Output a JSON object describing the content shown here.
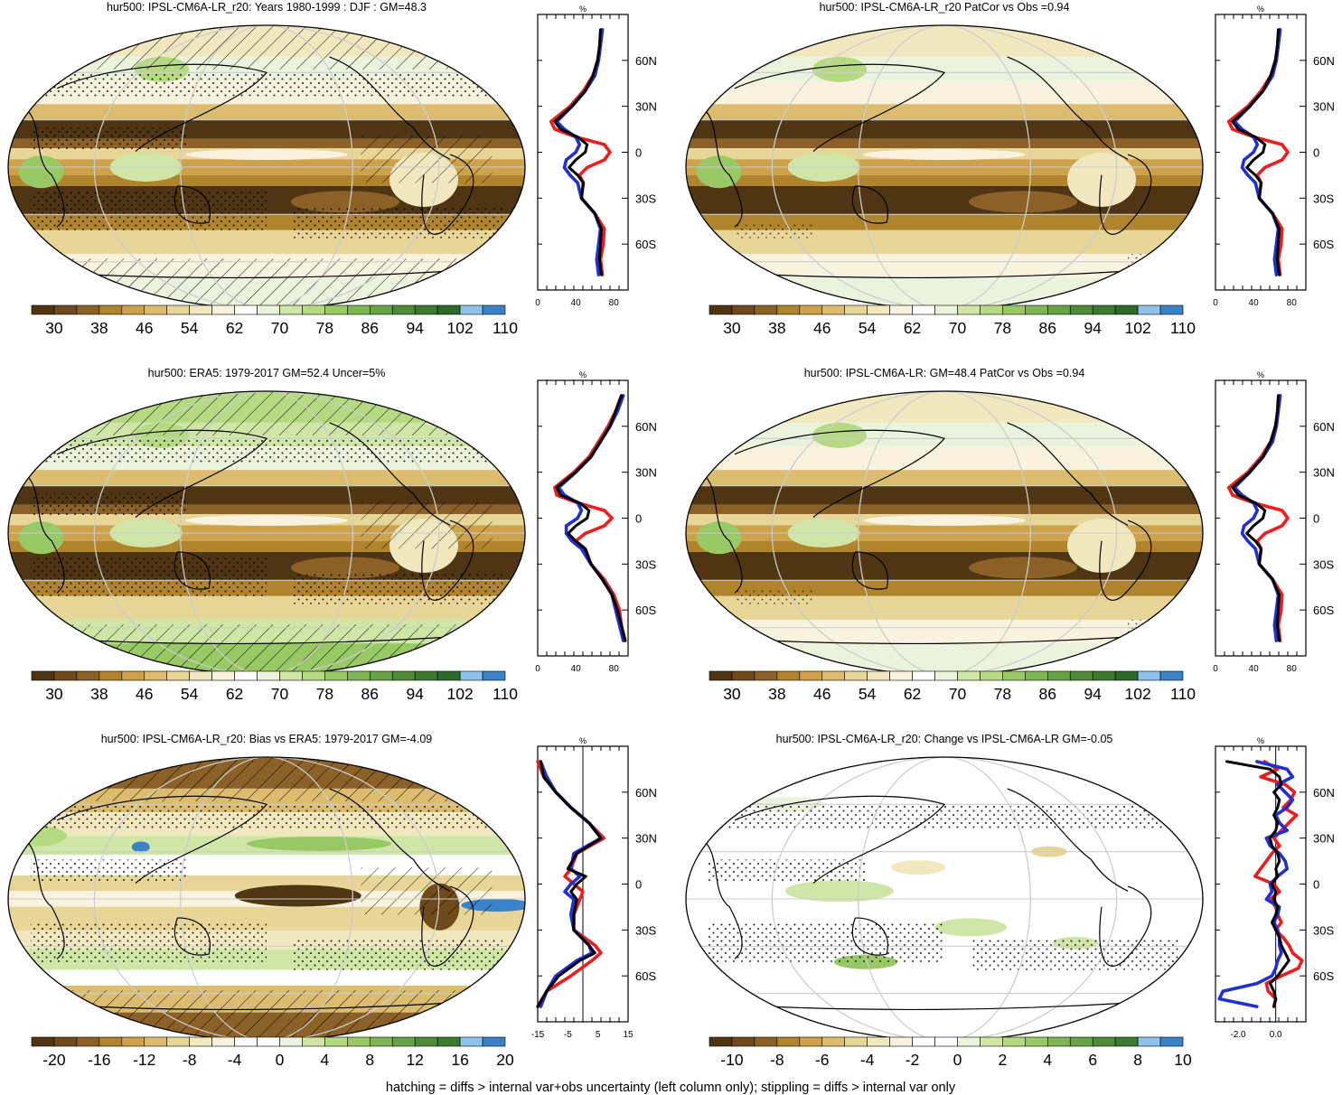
{
  "footer": "hatching = diffs > internal var+obs uncertainty (left column only); stippling = diffs > internal var only",
  "lat_ticks": [
    "60N",
    "30N",
    "0",
    "30S",
    "60S"
  ],
  "profile_unit": "%",
  "colorbars": {
    "absolute": {
      "labels": [
        "30",
        "38",
        "46",
        "54",
        "62",
        "70",
        "78",
        "86",
        "94",
        "102",
        "110"
      ],
      "colors": [
        "#4f3514",
        "#6f4a1c",
        "#8c6128",
        "#b0842c",
        "#cda24a",
        "#dcbd70",
        "#e8d598",
        "#f2e8c0",
        "#f8f2de",
        "#ffffff",
        "#ecf3dc",
        "#cfe6a6",
        "#b6da82",
        "#98c964",
        "#7fb552",
        "#67a244",
        "#4f8a37",
        "#3d7a30",
        "#2c6a2a",
        "#8ec2ea",
        "#3b83c8"
      ]
    },
    "bias": {
      "labels": [
        "-20",
        "-16",
        "-12",
        "-8",
        "-4",
        "0",
        "4",
        "8",
        "12",
        "16",
        "20"
      ],
      "colors": [
        "#4f3514",
        "#6f4a1c",
        "#8c6128",
        "#b0842c",
        "#cda24a",
        "#dcbd70",
        "#e8d598",
        "#f2e8c0",
        "#f8f2de",
        "#ffffff",
        "#ffffff",
        "#ecf3dc",
        "#cfe6a6",
        "#b6da82",
        "#98c964",
        "#7fb552",
        "#67a244",
        "#4f8a37",
        "#3d7a30",
        "#8ec2ea",
        "#3b83c8"
      ]
    },
    "change": {
      "labels": [
        "-10",
        "-8",
        "-6",
        "-4",
        "-2",
        "0",
        "2",
        "4",
        "6",
        "8",
        "10"
      ],
      "colors": [
        "#4f3514",
        "#6f4a1c",
        "#8c6128",
        "#b0842c",
        "#cda24a",
        "#dcbd70",
        "#e8d598",
        "#f2e8c0",
        "#f8f2de",
        "#ffffff",
        "#ffffff",
        "#ecf3dc",
        "#cfe6a6",
        "#b6da82",
        "#98c964",
        "#7fb552",
        "#67a244",
        "#4f8a37",
        "#3d7a30",
        "#8ec2ea",
        "#3b83c8"
      ]
    }
  },
  "profile_colors": {
    "black": "#000000",
    "red": "#ee1c1c",
    "blue": "#1f2fd6"
  },
  "chart_data": [
    {
      "type": "heatmap",
      "title": "hur500: IPSL-CM6A-LR_r20: Years 1980-1999 : DJF : GM=48.3",
      "colorbar": "absolute",
      "pattern": "hatching+stippling",
      "profile": {
        "xticks": [
          "0",
          "40",
          "80"
        ],
        "xlim": [
          0,
          95
        ],
        "zero_line": false,
        "lat": [
          80,
          70,
          60,
          50,
          40,
          30,
          20,
          15,
          10,
          5,
          0,
          -5,
          -10,
          -15,
          -20,
          -30,
          -40,
          -50,
          -60,
          -70,
          -80
        ],
        "series": [
          {
            "name": "black",
            "values": [
              66,
              65,
              63,
              58,
              50,
              36,
              18,
              24,
              42,
              52,
              50,
              40,
              33,
              42,
              48,
              46,
              60,
              67,
              66,
              65,
              67
            ]
          },
          {
            "name": "red",
            "values": [
              67,
              66,
              63,
              58,
              48,
              34,
              14,
              18,
              40,
              70,
              76,
              70,
              52,
              44,
              48,
              46,
              60,
              70,
              69,
              66,
              68
            ]
          },
          {
            "name": "blue",
            "values": [
              68,
              66,
              64,
              60,
              50,
              36,
              20,
              28,
              40,
              44,
              40,
              30,
              28,
              34,
              42,
              46,
              60,
              66,
              64,
              62,
              64
            ]
          }
        ]
      }
    },
    {
      "type": "heatmap",
      "title": "hur500: IPSL-CM6A-LR_r20 PatCor vs Obs =0.94",
      "colorbar": "absolute",
      "pattern": "stippling",
      "profile": {
        "xticks": [
          "0",
          "40",
          "80"
        ],
        "xlim": [
          0,
          95
        ],
        "zero_line": false,
        "lat": [
          80,
          70,
          60,
          50,
          40,
          30,
          20,
          15,
          10,
          5,
          0,
          -5,
          -10,
          -15,
          -20,
          -30,
          -40,
          -50,
          -60,
          -70,
          -80
        ],
        "series": [
          {
            "name": "black",
            "values": [
              66,
              65,
              63,
              58,
              50,
              36,
              18,
              24,
              42,
              52,
              50,
              40,
              33,
              42,
              48,
              46,
              60,
              67,
              66,
              65,
              67
            ]
          },
          {
            "name": "red",
            "values": [
              67,
              66,
              63,
              58,
              48,
              34,
              14,
              18,
              40,
              70,
              76,
              70,
              52,
              44,
              48,
              46,
              60,
              70,
              69,
              66,
              68
            ]
          },
          {
            "name": "blue",
            "values": [
              68,
              66,
              64,
              60,
              50,
              36,
              20,
              28,
              40,
              44,
              40,
              30,
              28,
              34,
              42,
              46,
              60,
              66,
              64,
              62,
              64
            ]
          }
        ]
      }
    },
    {
      "type": "heatmap",
      "title": "hur500: ERA5: 1979-2017 GM=52.4 Uncer=5%",
      "colorbar": "absolute",
      "pattern": "hatching+stippling",
      "profile": {
        "xticks": [
          "0",
          "40",
          "80"
        ],
        "xlim": [
          0,
          95
        ],
        "zero_line": false,
        "lat": [
          80,
          70,
          60,
          50,
          40,
          30,
          20,
          15,
          10,
          5,
          0,
          -5,
          -10,
          -15,
          -20,
          -30,
          -40,
          -50,
          -60,
          -70,
          -80
        ],
        "series": [
          {
            "name": "black",
            "values": [
              88,
              82,
              76,
              66,
              56,
              40,
              20,
              24,
              44,
              54,
              52,
              40,
              32,
              40,
              50,
              56,
              68,
              78,
              84,
              88,
              92
            ]
          },
          {
            "name": "red",
            "values": [
              88,
              82,
              74,
              64,
              54,
              38,
              18,
              20,
              42,
              70,
              78,
              70,
              50,
              40,
              50,
              56,
              70,
              80,
              86,
              88,
              92
            ]
          },
          {
            "name": "blue",
            "values": [
              90,
              84,
              76,
              66,
              56,
              40,
              22,
              28,
              42,
              46,
              42,
              30,
              30,
              36,
              46,
              56,
              68,
              78,
              82,
              86,
              90
            ]
          }
        ]
      }
    },
    {
      "type": "heatmap",
      "title": "hur500: IPSL-CM6A-LR: GM=48.4 PatCor vs Obs =0.94",
      "colorbar": "absolute",
      "pattern": "stippling",
      "profile": {
        "xticks": [
          "0",
          "40",
          "80"
        ],
        "xlim": [
          0,
          95
        ],
        "zero_line": false,
        "lat": [
          80,
          70,
          60,
          50,
          40,
          30,
          20,
          15,
          10,
          5,
          0,
          -5,
          -10,
          -15,
          -20,
          -30,
          -40,
          -50,
          -60,
          -70,
          -80
        ],
        "series": [
          {
            "name": "black",
            "values": [
              66,
              65,
              63,
              58,
              50,
              36,
              18,
              24,
              42,
              52,
              50,
              40,
              33,
              42,
              48,
              46,
              60,
              67,
              66,
              65,
              67
            ]
          },
          {
            "name": "red",
            "values": [
              67,
              66,
              63,
              58,
              48,
              34,
              14,
              18,
              40,
              70,
              76,
              70,
              52,
              44,
              48,
              46,
              60,
              70,
              69,
              66,
              68
            ]
          },
          {
            "name": "blue",
            "values": [
              68,
              66,
              64,
              60,
              50,
              36,
              20,
              28,
              40,
              44,
              40,
              30,
              28,
              34,
              42,
              46,
              60,
              66,
              64,
              62,
              64
            ]
          }
        ]
      }
    },
    {
      "type": "heatmap",
      "title": "hur500: IPSL-CM6A-LR_r20: Bias vs ERA5: 1979-2017 GM=-4.09",
      "colorbar": "bias",
      "pattern": "hatching+stippling",
      "profile": {
        "xticks": [
          "-15",
          "-5",
          "5",
          "15"
        ],
        "xlim": [
          -15,
          15
        ],
        "zero_line": true,
        "lat": [
          80,
          70,
          60,
          50,
          40,
          30,
          20,
          10,
          5,
          0,
          -5,
          -10,
          -20,
          -30,
          -40,
          -45,
          -50,
          -60,
          -70,
          -80
        ],
        "series": [
          {
            "name": "black",
            "values": [
              -14,
              -13,
              -9,
              -4,
              2,
              6,
              -2,
              -5,
              1,
              -2,
              -4,
              -2,
              -3,
              -3,
              2,
              4,
              -1,
              -8,
              -12,
              -15
            ]
          },
          {
            "name": "red",
            "values": [
              -15,
              -13,
              -9,
              -4,
              2,
              7,
              -2,
              -4,
              -6,
              -3,
              0,
              -1,
              -3,
              -3,
              4,
              6,
              3,
              -4,
              -12,
              -15
            ]
          },
          {
            "name": "blue",
            "values": [
              -14,
              -12,
              -9,
              -4,
              2,
              6,
              -3,
              -4,
              -1,
              -4,
              -6,
              -3,
              -4,
              -3,
              2,
              3,
              -2,
              -9,
              -12,
              -14
            ]
          }
        ]
      }
    },
    {
      "type": "heatmap",
      "title": "hur500: IPSL-CM6A-LR_r20: Change vs IPSL-CM6A-LR GM=-0.05",
      "colorbar": "change",
      "pattern": "stippling",
      "profile": {
        "xticks": [
          "-2.0",
          "0.0"
        ],
        "xlim": [
          -3.2,
          1.6
        ],
        "zero_line": true,
        "lat": [
          80,
          75,
          70,
          65,
          60,
          55,
          50,
          45,
          40,
          35,
          30,
          25,
          20,
          15,
          10,
          5,
          0,
          -5,
          -10,
          -15,
          -20,
          -25,
          -30,
          -35,
          -40,
          -45,
          -50,
          -55,
          -60,
          -65,
          -70,
          -75,
          -80
        ],
        "series": [
          {
            "name": "black",
            "values": [
              -2.6,
              -0.3,
              0.2,
              0.3,
              -0.1,
              0.2,
              0.1,
              -0.1,
              0.1,
              0.0,
              -0.3,
              -0.2,
              0.1,
              0.2,
              0.0,
              0.1,
              -0.2,
              0.0,
              -0.1,
              0.1,
              0.0,
              -0.2,
              0.0,
              0.2,
              0.3,
              0.5,
              0.7,
              0.4,
              0.1,
              -0.3,
              -0.1,
              0.0,
              -0.1
            ]
          },
          {
            "name": "red",
            "values": [
              -0.6,
              0.1,
              -0.8,
              0.5,
              1.0,
              0.8,
              0.4,
              1.1,
              0.7,
              0.3,
              -0.1,
              0.2,
              -0.2,
              -0.5,
              -0.8,
              -1.1,
              -0.1,
              0.2,
              -0.3,
              0.0,
              0.1,
              0.3,
              0.0,
              0.4,
              0.7,
              0.9,
              1.4,
              1.2,
              0.3,
              -0.5,
              -0.4,
              0.0,
              -0.1
            ]
          },
          {
            "name": "blue",
            "values": [
              -1.0,
              0.6,
              0.9,
              0.1,
              0.5,
              0.9,
              0.6,
              0.0,
              0.2,
              0.6,
              -0.5,
              -0.3,
              0.2,
              0.5,
              0.6,
              0.1,
              -0.3,
              -0.2,
              -0.5,
              0.2,
              0.1,
              -0.1,
              0.1,
              0.2,
              0.2,
              0.3,
              0.1,
              0.0,
              -0.2,
              -1.0,
              -2.8,
              -3.0,
              -1.0
            ]
          }
        ]
      }
    }
  ]
}
